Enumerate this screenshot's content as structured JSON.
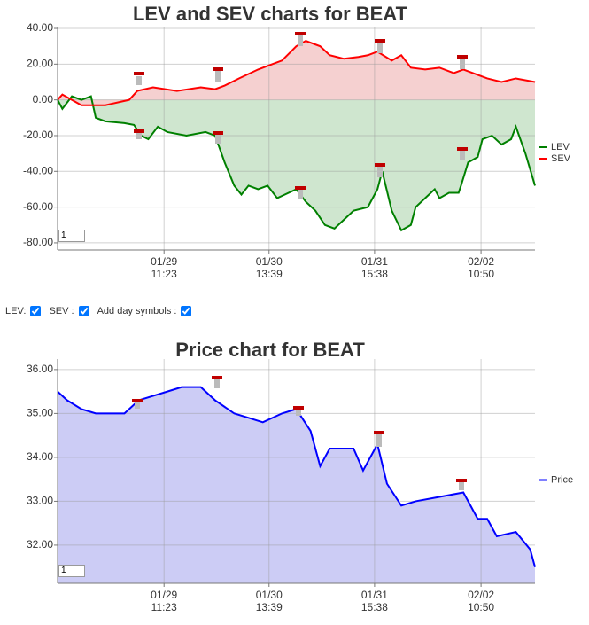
{
  "chart_data": [
    {
      "type": "line",
      "title": "LEV and SEV charts for BEAT",
      "input_value": "1",
      "xlim": [
        0,
        100
      ],
      "xticks": [
        {
          "value": 22.3,
          "label": "01/29 11:23"
        },
        {
          "value": 44.3,
          "label": "01/30 13:39"
        },
        {
          "value": 66.4,
          "label": "01/31 15:38"
        },
        {
          "value": 88.7,
          "label": "02/02 10:50"
        }
      ],
      "ylim": [
        -84,
        41
      ],
      "yticks": [
        {
          "value": 40,
          "label": "40.00"
        },
        {
          "value": 20,
          "label": "20.00"
        },
        {
          "value": 0,
          "label": "0.00"
        },
        {
          "value": -20,
          "label": "-20.00"
        },
        {
          "value": -40,
          "label": "-40.00"
        },
        {
          "value": -60,
          "label": "-60.00"
        },
        {
          "value": -80,
          "label": "-80.00"
        }
      ],
      "grid": true,
      "series": [
        {
          "name": "LEV",
          "color": "#008000",
          "fill": "#cfe6cf",
          "x": [
            0,
            1,
            3,
            5,
            7,
            8,
            10,
            14,
            16,
            17.5,
            19,
            21,
            23,
            27,
            31,
            33,
            35,
            37,
            38.5,
            40,
            42,
            44,
            46,
            50,
            52,
            54,
            56,
            58,
            60,
            62,
            65,
            67,
            68,
            70,
            72,
            74,
            75,
            77,
            79,
            80,
            82,
            84,
            84.5,
            86,
            88,
            89,
            91,
            93,
            95,
            96,
            98,
            100
          ],
          "values": [
            0,
            -5,
            2,
            0,
            2,
            -10,
            -12,
            -13,
            -14,
            -20,
            -22,
            -15,
            -18,
            -20,
            -18,
            -20,
            -35,
            -48,
            -53,
            -48,
            -50,
            -48,
            -55,
            -50,
            -57,
            -62,
            -70,
            -72,
            -67,
            -62,
            -60,
            -50,
            -40,
            -62,
            -73,
            -70,
            -60,
            -55,
            -50,
            -55,
            -52,
            -52,
            -48,
            -35,
            -32,
            -22,
            -20,
            -25,
            -22,
            -15,
            -30,
            -48
          ]
        },
        {
          "name": "SEV",
          "color": "#ff0000",
          "fill": "#f5d0d0",
          "x": [
            0,
            1,
            5,
            10,
            15,
            16.7,
            20,
            25,
            30,
            33,
            35,
            38,
            42,
            45,
            47,
            50,
            52,
            55,
            57,
            60,
            63,
            65,
            67,
            70,
            72,
            74,
            77,
            80,
            83,
            85,
            88,
            90,
            93,
            96,
            100
          ],
          "values": [
            0,
            3,
            -3,
            -3,
            0,
            5,
            7,
            5,
            7,
            6,
            8,
            12,
            17,
            20,
            22,
            30,
            33,
            30,
            25,
            23,
            24,
            25,
            27,
            22,
            25,
            18,
            17,
            18,
            15,
            17,
            14,
            12,
            10,
            12,
            10
          ]
        }
      ]
    },
    {
      "type": "line",
      "title": "Price chart for BEAT",
      "input_value": "1",
      "xlim": [
        0,
        100
      ],
      "xticks": [
        {
          "value": 22.3,
          "label": "01/29 11:23"
        },
        {
          "value": 44.3,
          "label": "01/30 13:39"
        },
        {
          "value": 66.4,
          "label": "01/31 15:38"
        },
        {
          "value": 88.7,
          "label": "02/02 10:50"
        }
      ],
      "ylim": [
        31.13,
        36.24
      ],
      "yticks": [
        {
          "value": 36,
          "label": "36.00"
        },
        {
          "value": 35,
          "label": "35.00"
        },
        {
          "value": 34,
          "label": "34.00"
        },
        {
          "value": 33,
          "label": "33.00"
        },
        {
          "value": 32,
          "label": "32.00"
        }
      ],
      "grid": true,
      "series": [
        {
          "name": "Price",
          "color": "#0000ff",
          "fill": "#ccccf5",
          "x": [
            0,
            2,
            5,
            8,
            12,
            14,
            17,
            20,
            23,
            26,
            30,
            33,
            37,
            40,
            43,
            47,
            50,
            53,
            55,
            57,
            62,
            64,
            67,
            69,
            72,
            75,
            80,
            85,
            86,
            88,
            90,
            92,
            96,
            99,
            100
          ],
          "values": [
            35.5,
            35.3,
            35.1,
            35,
            35,
            35,
            35.3,
            35.4,
            35.5,
            35.6,
            35.6,
            35.3,
            35,
            34.9,
            34.8,
            35,
            35.1,
            34.6,
            33.8,
            34.2,
            34.2,
            33.7,
            34.3,
            33.4,
            32.9,
            33,
            33.1,
            33.2,
            33,
            32.6,
            32.6,
            32.2,
            32.3,
            31.9,
            31.5
          ]
        }
      ]
    }
  ],
  "controls": {
    "lev_label": "LEV:",
    "sev_label": "SEV :",
    "day_label": "Add day symbols :"
  }
}
